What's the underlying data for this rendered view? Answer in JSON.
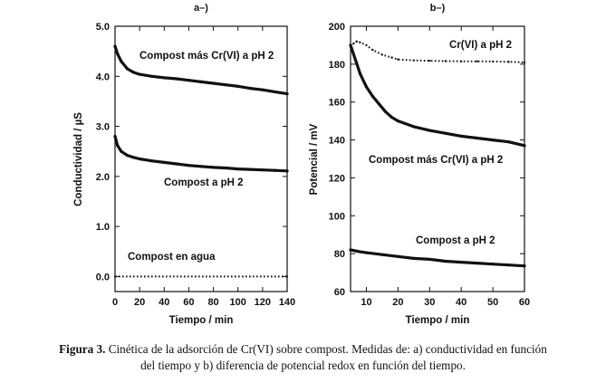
{
  "chart_data": [
    {
      "type": "line",
      "title": "a–)",
      "xlabel": "Tiempo / min",
      "ylabel": "Conductividad / µS",
      "xlim": [
        0,
        140
      ],
      "ylim": [
        -0.3,
        5.0
      ],
      "xticks": [
        0,
        20,
        40,
        60,
        80,
        100,
        120,
        140
      ],
      "yticks": [
        0.0,
        1.0,
        2.0,
        3.0,
        4.0,
        5.0
      ],
      "xtick_labels": [
        "0",
        "20",
        "40",
        "60",
        "80",
        "100",
        "120",
        "140"
      ],
      "ytick_labels": [
        "0.0",
        "1.0",
        "2.0",
        "3.0",
        "4.0",
        "5.0"
      ],
      "series": [
        {
          "name": "Compost más Cr(VI) a pH 2",
          "style": "solid",
          "x": [
            0,
            2,
            5,
            10,
            15,
            20,
            30,
            40,
            50,
            60,
            70,
            80,
            90,
            100,
            110,
            120,
            130,
            140
          ],
          "y": [
            4.6,
            4.45,
            4.3,
            4.15,
            4.08,
            4.04,
            4.0,
            3.97,
            3.95,
            3.92,
            3.89,
            3.86,
            3.83,
            3.8,
            3.76,
            3.73,
            3.69,
            3.65
          ]
        },
        {
          "name": "Compost a pH 2",
          "style": "solid",
          "x": [
            0,
            2,
            5,
            10,
            15,
            20,
            30,
            40,
            50,
            60,
            70,
            80,
            90,
            100,
            110,
            120,
            130,
            140
          ],
          "y": [
            2.8,
            2.62,
            2.5,
            2.42,
            2.38,
            2.35,
            2.31,
            2.28,
            2.25,
            2.22,
            2.2,
            2.18,
            2.17,
            2.15,
            2.14,
            2.13,
            2.12,
            2.11
          ]
        },
        {
          "name": "Compost en agua",
          "style": "dotted",
          "x": [
            0,
            140
          ],
          "y": [
            0.0,
            0.0
          ]
        }
      ]
    },
    {
      "type": "line",
      "title": "b–)",
      "xlabel": "Tiempo / min",
      "ylabel": "Potencial / mV",
      "xlim": [
        5,
        60
      ],
      "ylim": [
        60,
        200
      ],
      "xticks": [
        10,
        20,
        30,
        40,
        50,
        60
      ],
      "yticks": [
        60,
        80,
        100,
        120,
        140,
        160,
        180,
        200
      ],
      "xtick_labels": [
        "10",
        "20",
        "30",
        "40",
        "50",
        "60"
      ],
      "ytick_labels": [
        "60",
        "80",
        "100",
        "120",
        "140",
        "160",
        "180",
        "200"
      ],
      "series": [
        {
          "name": "Cr(VI) a pH 2",
          "style": "dotted",
          "x": [
            5,
            6,
            7,
            8,
            10,
            12,
            15,
            18,
            20,
            25,
            30,
            35,
            40,
            45,
            50,
            55,
            60
          ],
          "y": [
            189,
            191,
            192,
            191.5,
            190,
            187.5,
            185,
            183.5,
            182.5,
            182,
            181.8,
            181.6,
            181.5,
            181.5,
            181.4,
            181.2,
            181
          ]
        },
        {
          "name": "Compost más Cr(VI) a pH 2",
          "style": "solid",
          "x": [
            5,
            6,
            7,
            8,
            10,
            12,
            14,
            16,
            18,
            20,
            25,
            30,
            35,
            40,
            45,
            50,
            55,
            60
          ],
          "y": [
            190,
            185,
            180,
            175,
            168,
            163,
            159,
            155,
            152,
            150,
            147,
            145,
            143.5,
            142,
            141,
            140,
            139,
            137
          ]
        },
        {
          "name": "Compost a pH 2",
          "style": "solid",
          "x": [
            5,
            8,
            10,
            15,
            20,
            25,
            30,
            35,
            40,
            45,
            50,
            55,
            60
          ],
          "y": [
            82,
            81,
            80.5,
            79.5,
            78.5,
            77.5,
            77,
            76,
            75.5,
            75,
            74.5,
            74,
            73.5
          ]
        }
      ]
    }
  ],
  "caption": {
    "label": "Figura 3.",
    "line1": " Cinética de la adsorción de Cr(VI) sobre compost. Medidas de: a) conductividad en función",
    "line2": "del tiempo y b) diferencia de potencial redox en función del tiempo."
  }
}
